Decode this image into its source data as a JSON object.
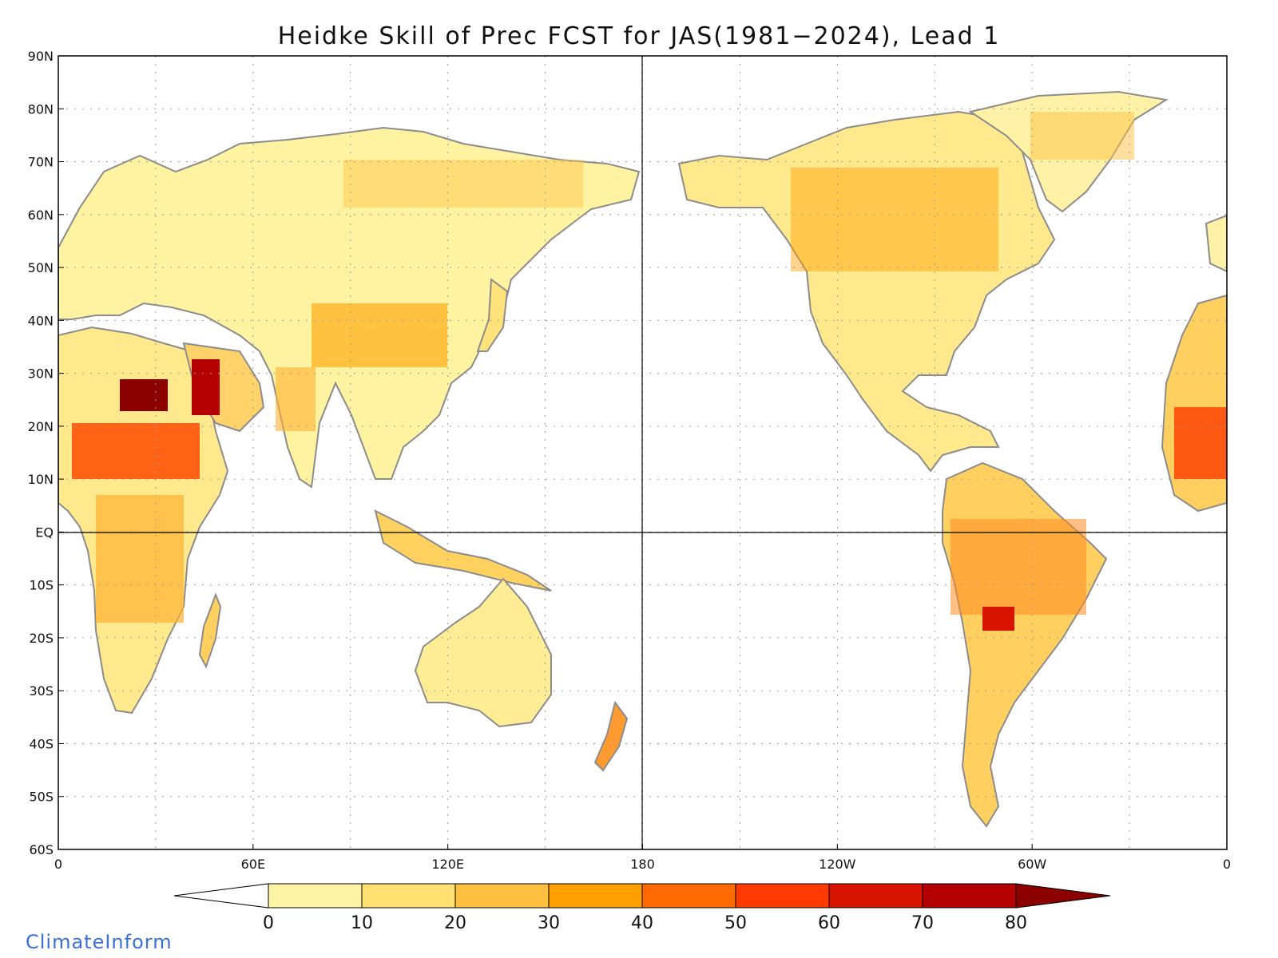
{
  "title": "Heidke Skill of Prec FCST for JAS(1981−2024), Lead 1",
  "credit": "ClimateInform",
  "lat_labels": [
    "90N",
    "80N",
    "70N",
    "60N",
    "50N",
    "40N",
    "30N",
    "20N",
    "10N",
    "EQ",
    "10S",
    "20S",
    "30S",
    "40S",
    "50S",
    "60S"
  ],
  "lon_labels": [
    "0",
    "60E",
    "120E",
    "180",
    "120W",
    "60W",
    "0"
  ],
  "colorbar": {
    "ticks": [
      "0",
      "10",
      "20",
      "30",
      "40",
      "50",
      "60",
      "70",
      "80"
    ],
    "colors": [
      "#ffffff",
      "#fff4a6",
      "#ffe070",
      "#ffc040",
      "#ffa000",
      "#ff6a00",
      "#ff3a00",
      "#d81400",
      "#b40000",
      "#8c0000"
    ]
  },
  "colors": {
    "land_outline": "#8c8c8c",
    "lakes": "#000000",
    "grid": "#9a9a9a"
  }
}
